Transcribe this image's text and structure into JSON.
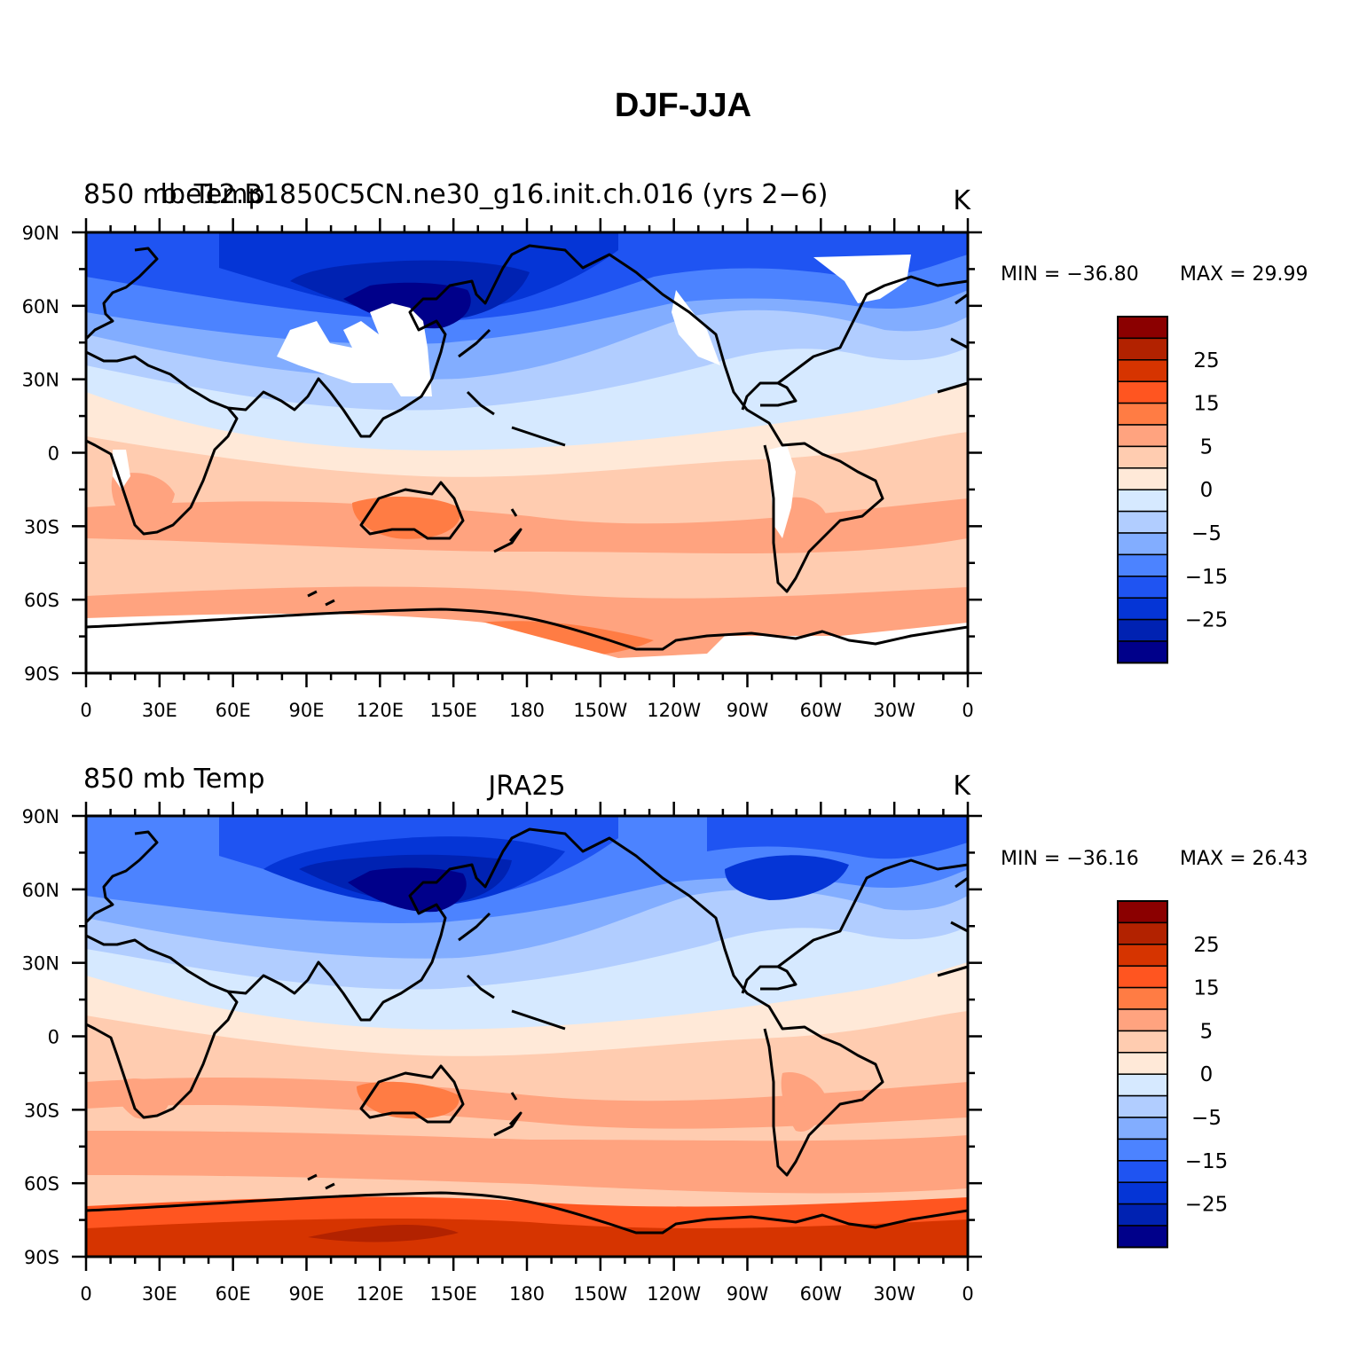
{
  "figure": {
    "title": "DJF-JJA"
  },
  "panels": [
    {
      "left_label": "850 mb Temp",
      "center_label": "b.e12.B1850C5CN.ne30_g16.init.ch.016 (yrs 2−6)",
      "units": "K",
      "min_label": "MIN = −36.80",
      "max_label": "MAX =   29.99",
      "has_missing_white": true
    },
    {
      "left_label": "850 mb Temp",
      "center_label": "JRA25",
      "units": "K",
      "min_label": "MIN = −36.16",
      "max_label": "MAX =   26.43",
      "has_missing_white": false
    }
  ],
  "axes": {
    "lat_ticks": [
      "90N",
      "60N",
      "30N",
      "0",
      "30S",
      "60S",
      "90S"
    ],
    "lon_ticks": [
      "0",
      "30E",
      "60E",
      "90E",
      "120E",
      "150E",
      "180",
      "150W",
      "120W",
      "90W",
      "60W",
      "30W",
      "0"
    ]
  },
  "colorbar": {
    "tick_labels": [
      "25",
      "15",
      "5",
      "0",
      "−5",
      "−15",
      "−25"
    ],
    "colors": [
      "#8b0000",
      "#b22200",
      "#d63400",
      "#ff5520",
      "#ff7c44",
      "#ffa37f",
      "#ffccb0",
      "#ffe9d8",
      "#d6e9ff",
      "#b1cdff",
      "#82adff",
      "#4c83ff",
      "#1f54f2",
      "#0535d6",
      "#0022b2",
      "#00008a"
    ]
  },
  "colors": {
    "land_outline": "#000000",
    "missing": "#ffffff"
  }
}
